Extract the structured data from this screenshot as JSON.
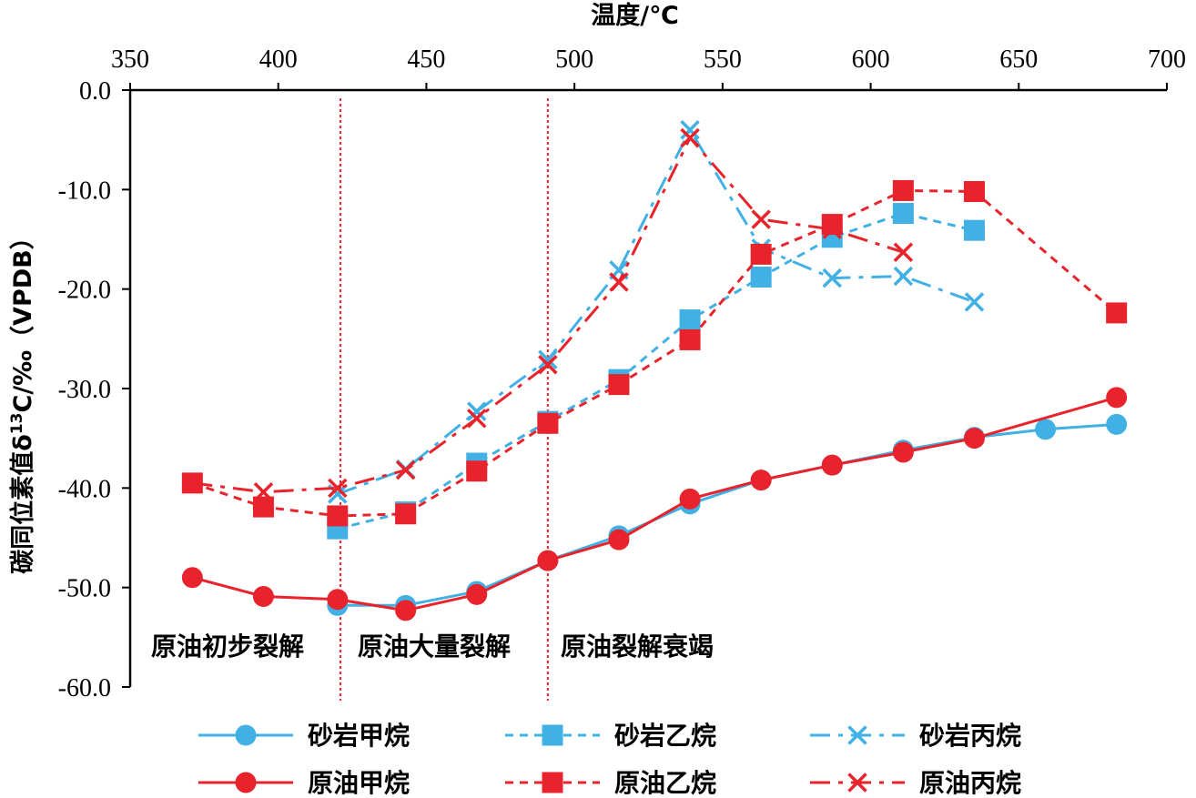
{
  "chart_data": {
    "type": "line",
    "xlabel": "温度/℃",
    "ylabel": "碳同位素值δ13C/‰（VPDB）",
    "ylabel_parts": {
      "before": "碳同位素值δ",
      "sup": "13",
      "after": "C/‰（VPDB）"
    },
    "xlim": [
      350,
      700
    ],
    "ylim": [
      -60,
      0
    ],
    "xticks": [
      350,
      400,
      450,
      500,
      550,
      600,
      650,
      700
    ],
    "yticks": [
      0,
      -10,
      -20,
      -30,
      -40,
      -50,
      -60
    ],
    "ytick_labels": [
      "0.0",
      "-10.0",
      "-20.0",
      "-30.0",
      "-40.0",
      "-50.0",
      "-60.0"
    ],
    "x_axis_position": "top",
    "grid": false,
    "legend_position": "bottom",
    "vlines": [
      421,
      491
    ],
    "zones": [
      "原油初步裂解",
      "原油大量裂解",
      "原油裂解衰竭"
    ],
    "colors": {
      "sandstone": "#41b0e4",
      "crude": "#e8232c"
    },
    "series": [
      {
        "name": "砂岩甲烷",
        "color": "#41b0e4",
        "dash": "solid",
        "marker": "circle",
        "x": [
          420,
          443,
          467,
          491,
          515,
          539,
          563,
          587,
          611,
          635,
          659,
          683
        ],
        "y": [
          -51.8,
          -51.8,
          -50.4,
          -47.3,
          -44.8,
          -41.6,
          -39.2,
          -37.7,
          -36.2,
          -34.9,
          -34.1,
          -33.6
        ]
      },
      {
        "name": "砂岩乙烷",
        "color": "#41b0e4",
        "dash": "short",
        "marker": "square",
        "x": [
          420,
          443,
          467,
          491,
          515,
          539,
          563,
          587,
          611,
          635
        ],
        "y": [
          -44.1,
          -42.4,
          -37.5,
          -33.3,
          -29.1,
          -23.1,
          -18.8,
          -14.8,
          -12.4,
          -14.1
        ]
      },
      {
        "name": "砂岩丙烷",
        "color": "#41b0e4",
        "dash": "long",
        "marker": "x",
        "x": [
          420,
          443,
          467,
          491,
          515,
          539,
          563,
          587,
          611,
          635
        ],
        "y": [
          -40.6,
          -38.1,
          -32.3,
          -27.1,
          -18.1,
          -4.0,
          -15.9,
          -18.9,
          -18.7,
          -21.3
        ]
      },
      {
        "name": "原油甲烷",
        "color": "#e8232c",
        "dash": "solid",
        "marker": "circle",
        "x": [
          371,
          395,
          420,
          443,
          467,
          491,
          515,
          539,
          563,
          587,
          611,
          635,
          683
        ],
        "y": [
          -49.0,
          -50.9,
          -51.2,
          -52.3,
          -50.7,
          -47.3,
          -45.2,
          -41.1,
          -39.2,
          -37.7,
          -36.4,
          -35.0,
          -30.9
        ]
      },
      {
        "name": "原油乙烷",
        "color": "#e8232c",
        "dash": "short",
        "marker": "square",
        "x": [
          371,
          395,
          420,
          443,
          467,
          491,
          515,
          539,
          563,
          587,
          611,
          635,
          683
        ],
        "y": [
          -39.5,
          -41.9,
          -42.8,
          -42.6,
          -38.3,
          -33.5,
          -29.6,
          -25.1,
          -16.5,
          -13.5,
          -10.1,
          -10.2,
          -22.4
        ]
      },
      {
        "name": "原油丙烷",
        "color": "#e8232c",
        "dash": "long",
        "marker": "x",
        "x": [
          371,
          395,
          420,
          443,
          467,
          491,
          515,
          539,
          563,
          587,
          611
        ],
        "y": [
          -39.5,
          -40.4,
          -40.0,
          -38.2,
          -33.0,
          -27.6,
          -19.3,
          -4.8,
          -13.0,
          -14.0,
          -16.3
        ]
      }
    ]
  }
}
